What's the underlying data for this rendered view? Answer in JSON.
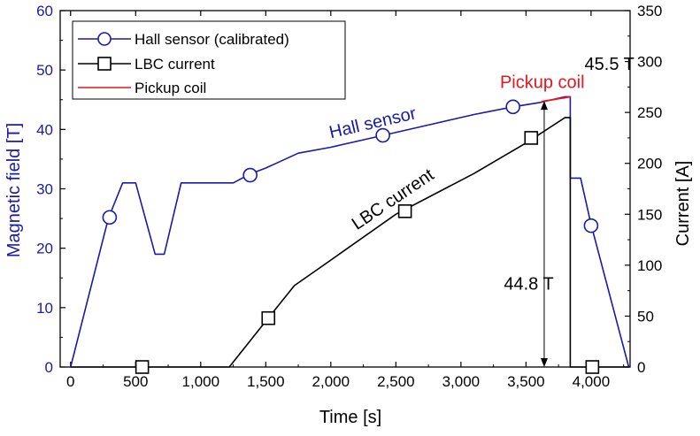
{
  "chart_data": {
    "type": "line",
    "title": "",
    "xlabel": "Time [s]",
    "ylabel_left": "Magnetic field [T]",
    "ylabel_right": "Current [A]",
    "xlim": [
      -80,
      4300
    ],
    "ylim_left": [
      0,
      60
    ],
    "ylim_right": [
      0,
      350
    ],
    "x_ticks": [
      0,
      500,
      1000,
      1500,
      2000,
      2500,
      3000,
      3500,
      4000
    ],
    "x_tick_labels": [
      "0",
      "500",
      "1,000",
      "1,500",
      "2,000",
      "2,500",
      "3,000",
      "3,500",
      "4,000"
    ],
    "y_left_ticks": [
      0,
      10,
      20,
      30,
      40,
      50,
      60
    ],
    "y_left_tick_labels": [
      "0",
      "10",
      "20",
      "30",
      "40",
      "50",
      "60"
    ],
    "y_right_ticks": [
      0,
      50,
      100,
      150,
      200,
      250,
      300,
      350
    ],
    "y_right_tick_labels": [
      "0",
      "50",
      "100",
      "150",
      "200",
      "250",
      "300",
      "350"
    ],
    "grid": false,
    "legend_position": "top-left",
    "series": [
      {
        "name": "Hall sensor (calibrated)",
        "axis": "left",
        "color": "#1a1aa8",
        "marker": "circle",
        "x": [
          0,
          290,
          400,
          500,
          650,
          720,
          850,
          1000,
          1250,
          1380,
          1500,
          1600,
          1750,
          2000,
          2400,
          2800,
          3100,
          3400,
          3600,
          3800,
          3840,
          3840,
          3920,
          4000,
          4290
        ],
        "y": [
          0,
          25,
          31,
          31,
          19,
          19,
          31,
          31,
          31,
          32.5,
          33.5,
          34.5,
          36,
          37,
          39,
          41,
          42.5,
          43.8,
          44.5,
          45.5,
          45.5,
          31.8,
          31.8,
          24,
          0
        ],
        "marker_x": [
          300,
          1380,
          2400,
          3400,
          4000
        ],
        "marker_y": [
          25.2,
          32.3,
          39,
          43.8,
          23.8
        ]
      },
      {
        "name": "LBC current",
        "axis": "right",
        "color": "#000000",
        "marker": "square",
        "x": [
          0,
          1220,
          1500,
          1720,
          2000,
          2500,
          3100,
          3500,
          3800,
          3840,
          3840,
          4100,
          4290
        ],
        "y": [
          0,
          0,
          45,
          80,
          105,
          150,
          190,
          220,
          245,
          245,
          0,
          0,
          0
        ],
        "marker_x": [
          550,
          1520,
          2570,
          3540,
          4010
        ],
        "marker_y": [
          0,
          48,
          153,
          225,
          0
        ]
      },
      {
        "name": "Pickup coil",
        "axis": "left",
        "color": "#e8141e",
        "marker": "none",
        "x": [
          3620,
          3845
        ],
        "y": [
          44.7,
          45.5
        ]
      }
    ],
    "annotations": [
      {
        "text": "Hall sensor",
        "color": "#1a1aa8",
        "x": 2000,
        "axis": "left",
        "y": 38.5,
        "rotate": -13
      },
      {
        "text": "LBC current",
        "color": "#000000",
        "x": 2200,
        "axis": "left",
        "y": 23,
        "rotate": -34
      },
      {
        "text": "Pickup coil",
        "color": "#e8141e",
        "x": 3300,
        "axis": "left",
        "y": 47,
        "rotate": 0
      },
      {
        "text": "45.5 T",
        "color": "#000000",
        "x": 3950,
        "axis": "left",
        "y": 50,
        "rotate": 0
      },
      {
        "text": "44.8 T",
        "color": "#000000",
        "x": 3330,
        "axis": "left",
        "y": 13,
        "rotate": 0
      }
    ],
    "arrow": {
      "x": 3640,
      "y_from": 0,
      "y_to": 44.8,
      "axis": "left",
      "color": "#000000"
    }
  }
}
